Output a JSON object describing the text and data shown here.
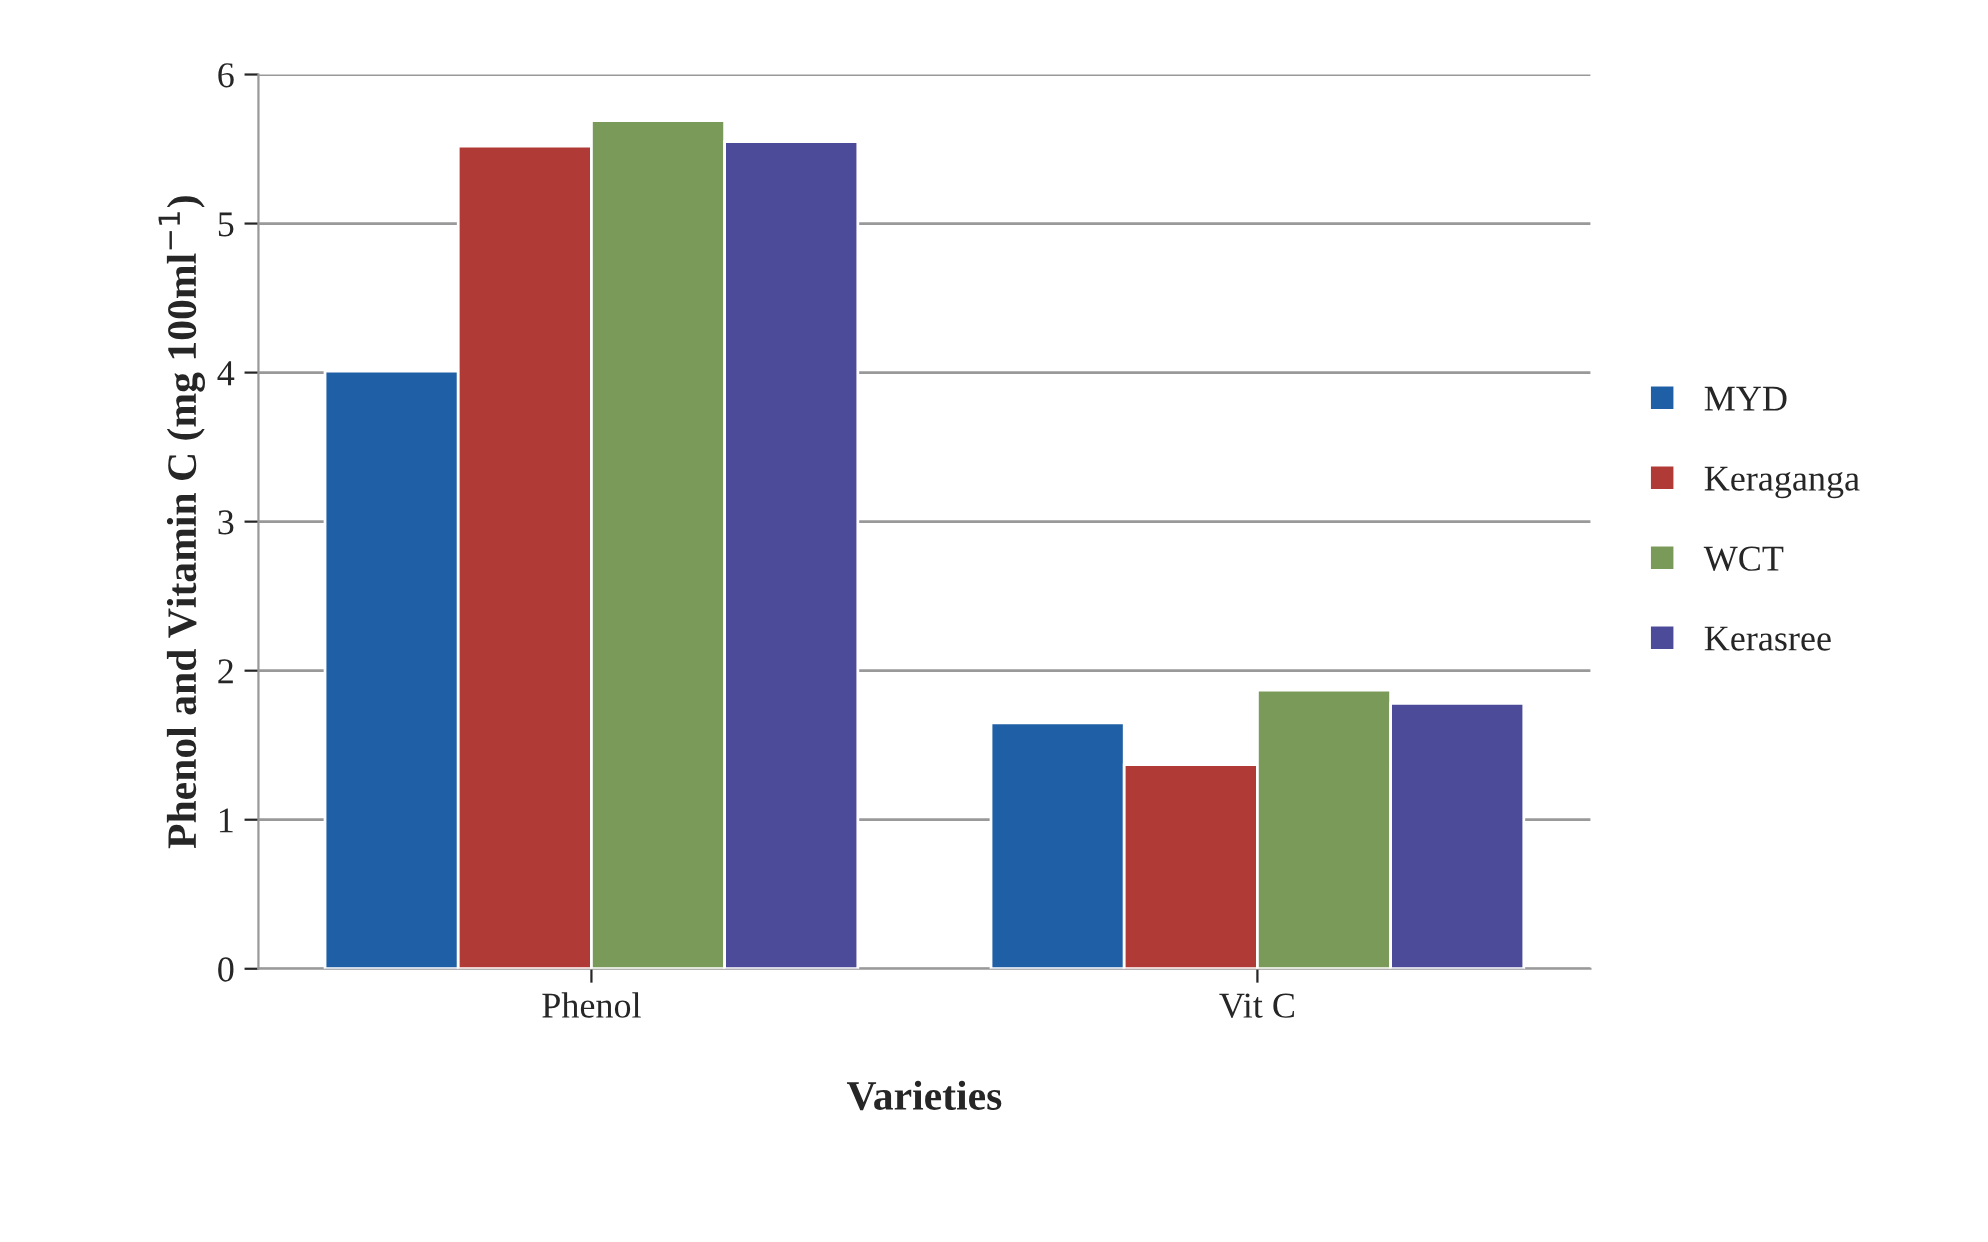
{
  "chart_data": {
    "type": "bar",
    "xlabel": "Varieties",
    "ylabel": "Phenol and Vitamin C (mg 100ml$^{−1}$)",
    "categories": [
      "Phenol",
      "Vit C"
    ],
    "series": [
      {
        "name": "MYD",
        "color": "#1f5fa6",
        "values": [
          4.01,
          1.65
        ]
      },
      {
        "name": "Keraganga",
        "color": "#b03a35",
        "values": [
          5.52,
          1.37
        ]
      },
      {
        "name": "WCT",
        "color": "#7a9a5a",
        "values": [
          5.69,
          1.87
        ]
      },
      {
        "name": "Kerasree",
        "color": "#4b4b9a",
        "values": [
          5.55,
          1.78
        ]
      }
    ],
    "ylim": [
      0,
      6
    ],
    "yticks": [
      0,
      1,
      2,
      3,
      4,
      5,
      6
    ],
    "grid": "y",
    "legend": "right"
  }
}
